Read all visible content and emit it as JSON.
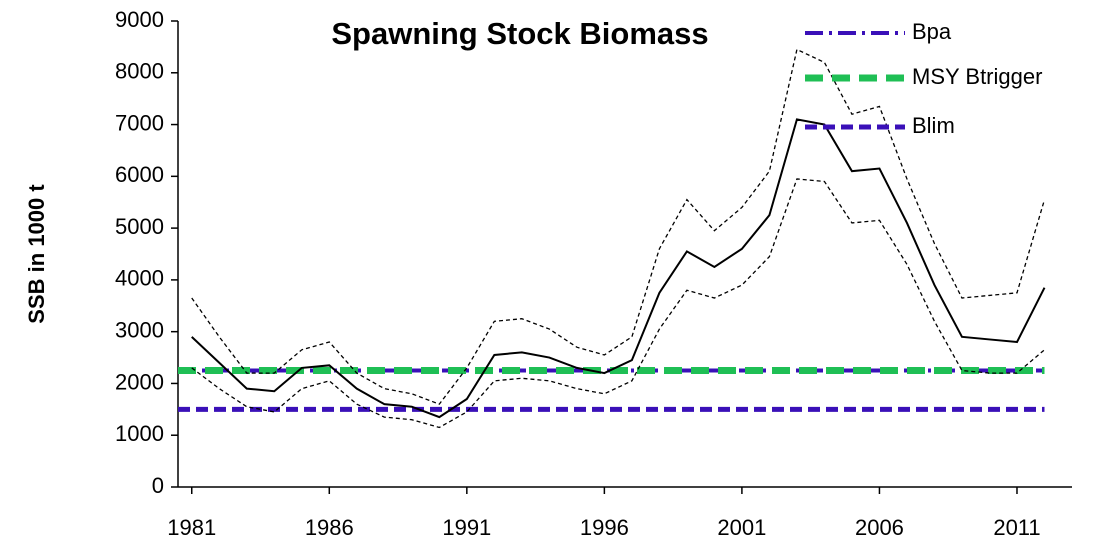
{
  "chart_data": {
    "type": "line",
    "title": "Spawning Stock Biomass",
    "y_label": "SSB in 1000 t",
    "x": [
      1981,
      1982,
      1983,
      1984,
      1985,
      1986,
      1987,
      1988,
      1989,
      1990,
      1991,
      1992,
      1993,
      1994,
      1995,
      1996,
      1997,
      1998,
      1999,
      2000,
      2001,
      2002,
      2003,
      2004,
      2005,
      2006,
      2007,
      2008,
      2009,
      2010,
      2011,
      2012
    ],
    "series": [
      {
        "color": "#000000",
        "style": "solid",
        "values": [
          2900,
          2400,
          1900,
          1850,
          2300,
          2350,
          1900,
          1600,
          1550,
          1350,
          1700,
          2550,
          2600,
          2500,
          2300,
          2200,
          2450,
          3750,
          4550,
          4250,
          4600,
          5250,
          7100,
          7000,
          6100,
          6150,
          5100,
          3900,
          2900,
          2850,
          2800,
          3850
        ]
      },
      {
        "color": "#000000",
        "style": "dashed",
        "values": [
          3650,
          2900,
          2200,
          2200,
          2650,
          2800,
          2200,
          1900,
          1800,
          1600,
          2300,
          3200,
          3250,
          3050,
          2700,
          2550,
          2900,
          4600,
          5550,
          4950,
          5400,
          6100,
          8450,
          8200,
          7200,
          7350,
          5950,
          4700,
          3650,
          3700,
          3750,
          5550
        ]
      },
      {
        "color": "#000000",
        "style": "dashed",
        "values": [
          2300,
          1900,
          1550,
          1450,
          1900,
          2050,
          1600,
          1350,
          1300,
          1150,
          1450,
          2050,
          2100,
          2050,
          1900,
          1800,
          2050,
          3050,
          3800,
          3650,
          3900,
          4450,
          5950,
          5900,
          5100,
          5150,
          4300,
          3200,
          2250,
          2200,
          2200,
          2650
        ]
      }
    ],
    "reference_lines": [
      {
        "name": "Bpa",
        "value": 2250,
        "color": "#3a10b8",
        "style": "dashdot"
      },
      {
        "name": "MSY Btrigger",
        "value": 2250,
        "color": "#1fbf55",
        "style": "thickdash"
      },
      {
        "name": "Blim",
        "value": 1500,
        "color": "#3a10b8",
        "style": "dash"
      }
    ],
    "xlim": [
      1980.5,
      2013
    ],
    "xticks": [
      1981,
      1986,
      1991,
      1996,
      2001,
      2006,
      2011
    ],
    "ylim": [
      0,
      9000
    ],
    "yticks": [
      0,
      1000,
      2000,
      3000,
      4000,
      5000,
      6000,
      7000,
      8000,
      9000
    ],
    "grid": false,
    "legend": "top-right"
  }
}
